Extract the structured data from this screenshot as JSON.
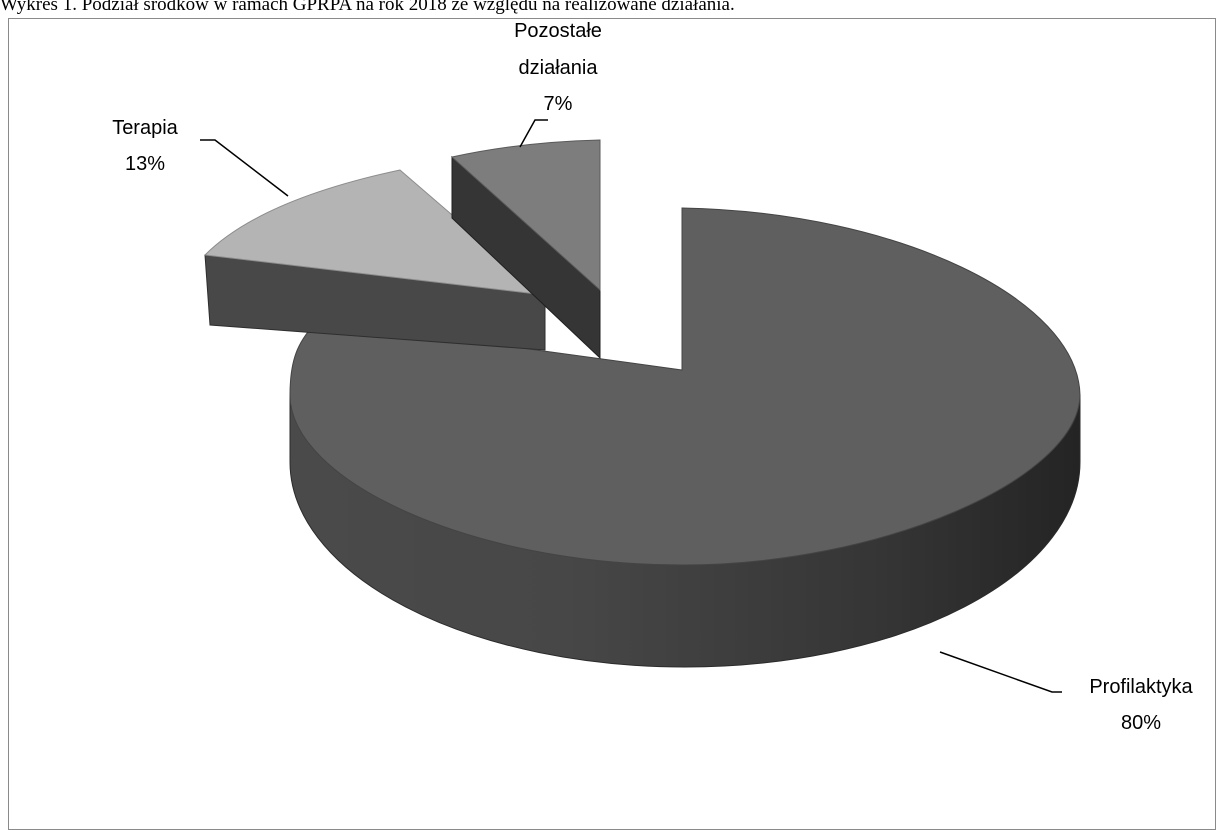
{
  "caption": "Wykres 1. Podział środków w ramach GPRPA na rok 2018 ze względu na realizowane działania.",
  "chart_data": {
    "type": "pie",
    "title": "",
    "slices": [
      {
        "name": "Profilaktyka",
        "value": 80,
        "label": "Profilaktyka",
        "pct": "80%",
        "color": "#5f5f5f"
      },
      {
        "name": "Terapia",
        "value": 13,
        "label": "Terapia",
        "pct": "13%",
        "color": "#b4b4b4"
      },
      {
        "name": "Pozostałe działania",
        "value": 7,
        "label_lines": [
          "Pozostałe",
          "działania"
        ],
        "pct": "7%",
        "color": "#7d7d7d"
      }
    ]
  }
}
